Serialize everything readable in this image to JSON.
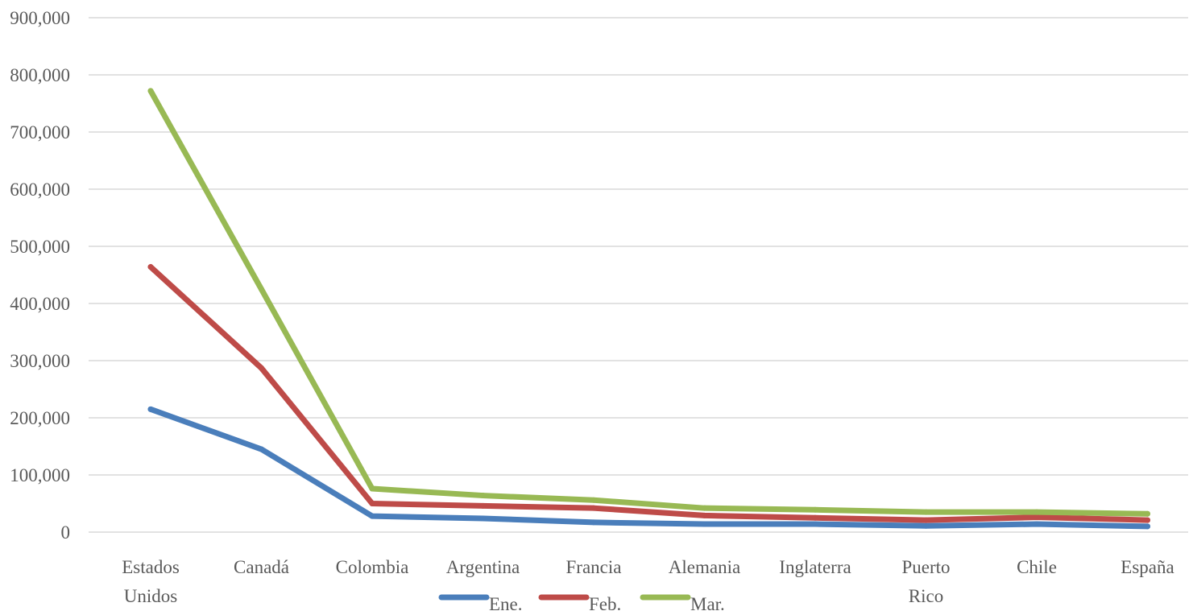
{
  "chart_data": {
    "type": "line",
    "categories": [
      [
        "Estados",
        "Unidos"
      ],
      [
        "Canadá"
      ],
      [
        "Colombia"
      ],
      [
        "Argentina"
      ],
      [
        "Francia"
      ],
      [
        "Alemania"
      ],
      [
        "Inglaterra"
      ],
      [
        "Puerto",
        "Rico"
      ],
      [
        "Chile"
      ],
      [
        "España"
      ]
    ],
    "series": [
      {
        "name": "Ene.",
        "color": "#4a7ebb",
        "values": [
          215000,
          145000,
          28000,
          24000,
          17000,
          14000,
          14000,
          11000,
          14000,
          10000
        ]
      },
      {
        "name": "Feb.",
        "color": "#be4b48",
        "values": [
          464000,
          287000,
          50000,
          46000,
          42000,
          29000,
          25000,
          21000,
          26000,
          21000
        ]
      },
      {
        "name": "Mar.",
        "color": "#98b954",
        "values": [
          772000,
          425000,
          76000,
          64000,
          56000,
          42000,
          39000,
          35000,
          35000,
          32000
        ]
      }
    ],
    "y_ticks": [
      "0",
      "100,000",
      "200,000",
      "300,000",
      "400,000",
      "500,000",
      "600,000",
      "700,000",
      "800,000",
      "900,000"
    ],
    "ylim": [
      0,
      900000
    ],
    "grid": true,
    "legend_position": "bottom"
  }
}
